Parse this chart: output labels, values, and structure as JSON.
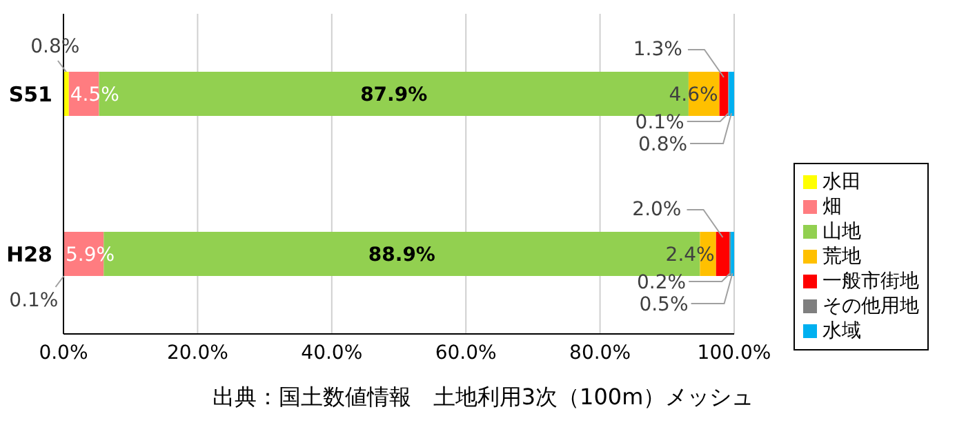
{
  "chart_data": {
    "type": "bar",
    "orientation": "horizontal",
    "stacked": true,
    "categories": [
      "S51",
      "H28"
    ],
    "series": [
      {
        "name": "水田",
        "color": "#ffff00",
        "values": [
          0.8,
          0.1
        ],
        "value_labels": [
          "0.8%",
          "0.1%"
        ]
      },
      {
        "name": "畑",
        "color": "#ff7c80",
        "values": [
          4.5,
          5.9
        ],
        "value_labels": [
          "4.5%",
          "5.9%"
        ]
      },
      {
        "name": "山地",
        "color": "#92d050",
        "values": [
          87.9,
          88.9
        ],
        "value_labels": [
          "87.9%",
          "88.9%"
        ]
      },
      {
        "name": "荒地",
        "color": "#ffc000",
        "values": [
          4.6,
          2.4
        ],
        "value_labels": [
          "4.6%",
          "2.4%"
        ]
      },
      {
        "name": "一般市街地",
        "color": "#ff0000",
        "values": [
          1.3,
          2.0
        ],
        "value_labels": [
          "1.3%",
          "2.0%"
        ]
      },
      {
        "name": "その他用地",
        "color": "#7f7f7f",
        "values": [
          0.1,
          0.2
        ],
        "value_labels": [
          "0.1%",
          "0.2%"
        ]
      },
      {
        "name": "水域",
        "color": "#00b0f0",
        "values": [
          0.8,
          0.5
        ],
        "value_labels": [
          "0.8%",
          "0.5%"
        ]
      }
    ],
    "xlim": [
      0,
      100
    ],
    "xticks": [
      {
        "value": 0,
        "label": "0.0%"
      },
      {
        "value": 20,
        "label": "20.0%"
      },
      {
        "value": 40,
        "label": "40.0%"
      },
      {
        "value": 60,
        "label": "60.0%"
      },
      {
        "value": 80,
        "label": "80.0%"
      },
      {
        "value": 100,
        "label": "100.0%"
      }
    ],
    "grid": "x",
    "legend": "right",
    "annotations": [
      "出典：国土数値情報　土地利用3次（100m）メッシュ"
    ]
  }
}
